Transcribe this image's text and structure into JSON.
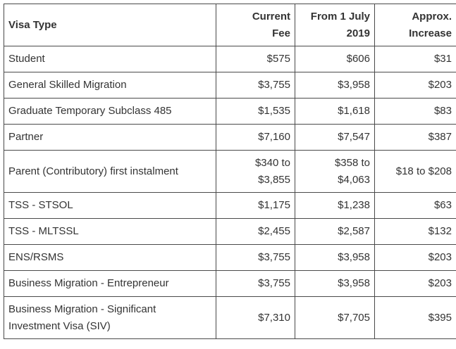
{
  "table": {
    "headers": {
      "visa_type": "Visa Type",
      "current_fee": [
        "Current",
        "Fee"
      ],
      "from_july": [
        "From 1 July",
        "2019"
      ],
      "increase": [
        "Approx.",
        "Increase"
      ]
    },
    "rows": [
      {
        "visa": [
          "Student"
        ],
        "current": [
          "$575"
        ],
        "new": [
          "$606"
        ],
        "increase": [
          "$31"
        ]
      },
      {
        "visa": [
          "General Skilled Migration"
        ],
        "current": [
          "$3,755"
        ],
        "new": [
          "$3,958"
        ],
        "increase": [
          "$203"
        ]
      },
      {
        "visa": [
          "Graduate Temporary Subclass 485"
        ],
        "current": [
          "$1,535"
        ],
        "new": [
          "$1,618"
        ],
        "increase": [
          "$83"
        ]
      },
      {
        "visa": [
          "Partner"
        ],
        "current": [
          "$7,160"
        ],
        "new": [
          "$7,547"
        ],
        "increase": [
          "$387"
        ]
      },
      {
        "visa": [
          "Parent (Contributory) first instalment"
        ],
        "current": [
          "$340 to",
          "$3,855"
        ],
        "new": [
          "$358 to",
          "$4,063"
        ],
        "increase": [
          "$18 to $208"
        ]
      },
      {
        "visa": [
          "TSS - STSOL"
        ],
        "current": [
          "$1,175"
        ],
        "new": [
          "$1,238"
        ],
        "increase": [
          "$63"
        ]
      },
      {
        "visa": [
          "TSS - MLTSSL"
        ],
        "current": [
          "$2,455"
        ],
        "new": [
          "$2,587"
        ],
        "increase": [
          "$132"
        ]
      },
      {
        "visa": [
          "ENS/RSMS"
        ],
        "current": [
          "$3,755"
        ],
        "new": [
          "$3,958"
        ],
        "increase": [
          "$203"
        ]
      },
      {
        "visa": [
          "Business Migration - Entrepreneur"
        ],
        "current": [
          "$3,755"
        ],
        "new": [
          "$3,958"
        ],
        "increase": [
          "$203"
        ]
      },
      {
        "visa": [
          "Business Migration - Significant",
          "Investment Visa (SIV)"
        ],
        "current": [
          "$7,310"
        ],
        "new": [
          "$7,705"
        ],
        "increase": [
          "$395"
        ]
      }
    ]
  }
}
